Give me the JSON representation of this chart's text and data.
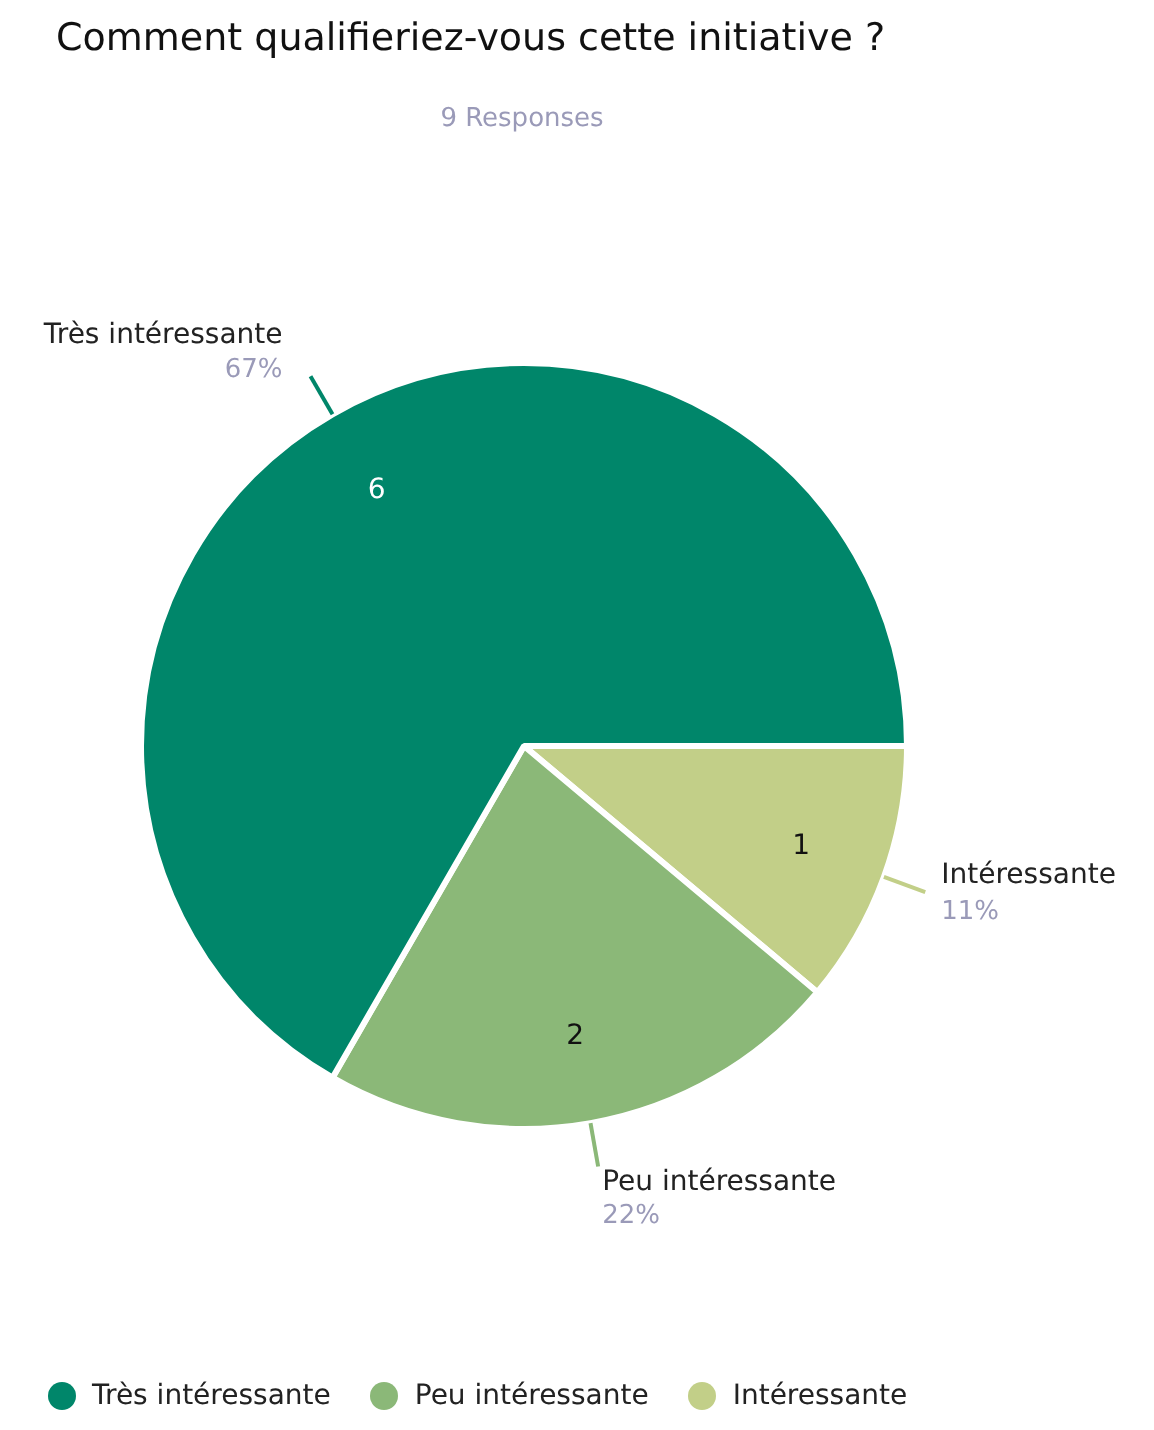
{
  "chart_data": {
    "type": "pie",
    "title": "Comment qualifieriez-vous cette initiative ?",
    "subtitle": "9 Responses",
    "categories": [
      "Très intéressante",
      "Peu intéressante",
      "Intéressante"
    ],
    "values": [
      6,
      2,
      1
    ],
    "colors": [
      "#00866a",
      "#8bb878",
      "#c2cf88"
    ],
    "data_labels": true,
    "annotations": [
      "67%",
      "22%",
      "11%"
    ],
    "legend": "bottom"
  }
}
